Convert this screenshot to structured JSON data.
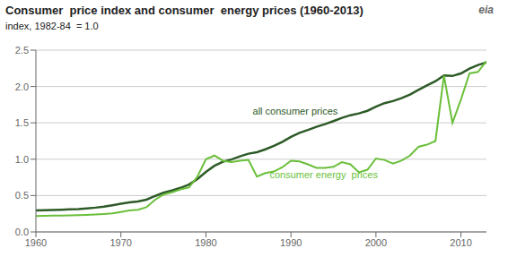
{
  "chart_data": {
    "type": "line",
    "title": "Consumer  price index and consumer  energy prices (1960-2013)",
    "subtitle": "index, 1982-84  = 1.0",
    "x": [
      1960,
      1961,
      1962,
      1963,
      1964,
      1965,
      1966,
      1967,
      1968,
      1969,
      1970,
      1971,
      1972,
      1973,
      1974,
      1975,
      1976,
      1977,
      1978,
      1979,
      1980,
      1981,
      1982,
      1983,
      1984,
      1985,
      1986,
      1987,
      1988,
      1989,
      1990,
      1991,
      1992,
      1993,
      1994,
      1995,
      1996,
      1997,
      1998,
      1999,
      2000,
      2001,
      2002,
      2003,
      2004,
      2005,
      2006,
      2007,
      2008,
      2009,
      2010,
      2011,
      2012,
      2013
    ],
    "series": [
      {
        "color": "#2d5a27",
        "values": [
          0.296,
          0.299,
          0.302,
          0.306,
          0.31,
          0.315,
          0.324,
          0.334,
          0.348,
          0.367,
          0.388,
          0.405,
          0.418,
          0.444,
          0.493,
          0.538,
          0.569,
          0.606,
          0.652,
          0.726,
          0.824,
          0.909,
          0.965,
          0.996,
          1.039,
          1.076,
          1.096,
          1.136,
          1.183,
          1.24,
          1.307,
          1.362,
          1.403,
          1.445,
          1.482,
          1.524,
          1.569,
          1.605,
          1.63,
          1.666,
          1.722,
          1.771,
          1.799,
          1.84,
          1.889,
          1.953,
          2.016,
          2.073,
          2.153,
          2.145,
          2.18,
          2.245,
          2.296,
          2.33
        ]
      },
      {
        "color": "#6abf3a",
        "values": [
          0.22,
          0.222,
          0.224,
          0.225,
          0.227,
          0.23,
          0.235,
          0.241,
          0.247,
          0.255,
          0.275,
          0.295,
          0.305,
          0.34,
          0.44,
          0.515,
          0.545,
          0.585,
          0.61,
          0.76,
          1.0,
          1.05,
          0.98,
          0.96,
          0.98,
          0.99,
          0.76,
          0.81,
          0.83,
          0.89,
          0.98,
          0.97,
          0.93,
          0.88,
          0.88,
          0.895,
          0.96,
          0.93,
          0.82,
          0.855,
          1.01,
          0.99,
          0.94,
          0.98,
          1.05,
          1.17,
          1.2,
          1.25,
          2.15,
          1.5,
          1.82,
          2.18,
          2.2,
          2.35
        ]
      }
    ],
    "annotations": [
      {
        "text": "all consumer prices",
        "x": 1985.5,
        "y": 1.58,
        "color": "#2d5a27"
      },
      {
        "text": "consumer energy  prices",
        "x": 1987.5,
        "y": 0.88,
        "color": "#6abf3a"
      },
      {
        "text": "eia"
      }
    ],
    "xlim": [
      1960,
      2013
    ],
    "xticks": [
      1960,
      1970,
      1980,
      1990,
      2000,
      2010
    ],
    "ylim": [
      0.0,
      2.5
    ],
    "yticks": [
      {
        "value": 0.0,
        "label": "0.0"
      },
      0.5,
      {
        "value": 1.0,
        "label": "1.0"
      },
      1.5,
      {
        "value": 2.0,
        "label": "2.0"
      },
      2.5
    ],
    "grid": true
  }
}
